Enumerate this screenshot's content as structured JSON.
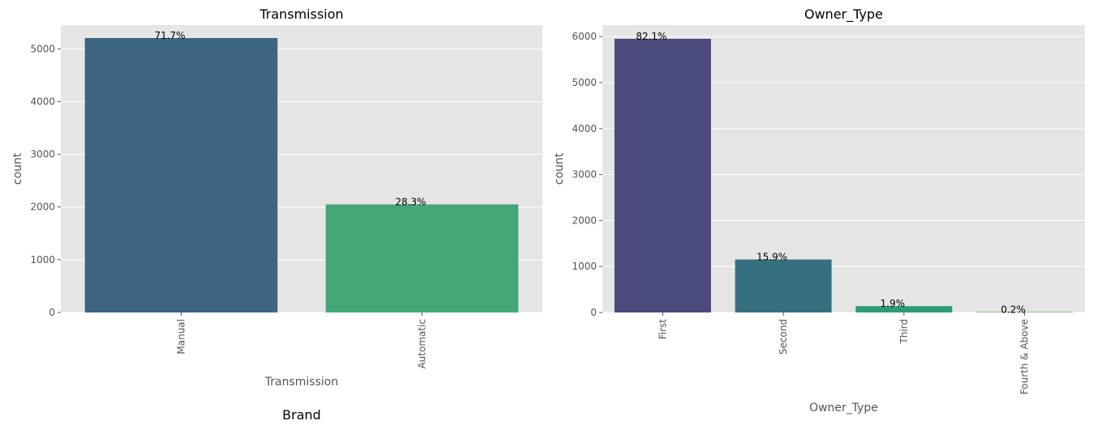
{
  "chart_data": [
    {
      "type": "bar",
      "title": "Transmission",
      "xlabel": "Transmission",
      "ylabel": "count",
      "categories": [
        "Manual",
        "Automatic"
      ],
      "values": [
        5204,
        2049
      ],
      "data_labels": [
        "71.7%",
        "28.3%"
      ],
      "colors": [
        "#3d6480",
        "#45a677"
      ],
      "ylim": [
        0,
        5450
      ],
      "yticks": [
        0,
        1000,
        2000,
        3000,
        4000,
        5000
      ],
      "grid": true,
      "legend": "none"
    },
    {
      "type": "bar",
      "title": "Owner_Type",
      "xlabel": "Owner_Type",
      "ylabel": "count",
      "categories": [
        "First",
        "Second",
        "Third",
        "Fourth & Above"
      ],
      "values": [
        5952,
        1152,
        137,
        12
      ],
      "data_labels": [
        "82.1%",
        "15.9%",
        "1.9%",
        "0.2%"
      ],
      "colors": [
        "#4a4a7c",
        "#367080",
        "#2d9a78",
        "#6cc24a"
      ],
      "ylim": [
        0,
        6250
      ],
      "yticks": [
        0,
        1000,
        2000,
        3000,
        4000,
        5000,
        6000
      ],
      "grid": true,
      "legend": "none"
    }
  ],
  "next_chart_title": "Brand"
}
